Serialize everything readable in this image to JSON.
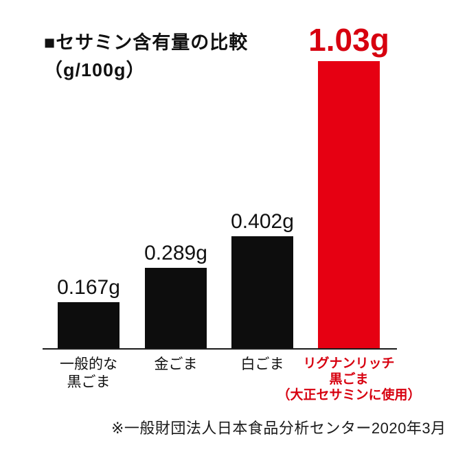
{
  "title": {
    "line1": "■セサミン含有量の比較",
    "line2": "（g/100g）"
  },
  "footnote": "※一般財団法人日本食品分析センター2020年3月",
  "colors": {
    "bar_black": "#0d0d0d",
    "bar_red": "#e60012",
    "text_black": "#111111",
    "text_red": "#d7000f",
    "background": "#ffffff"
  },
  "chart_data": {
    "type": "bar",
    "title": "セサミン含有量の比較（g/100g）",
    "ylabel": "セサミン含有量 (g/100g)",
    "xlabel": "",
    "ylim": [
      0,
      1.03
    ],
    "grid": false,
    "legend": false,
    "categories": [
      "一般的な黒ごま",
      "金ごま",
      "白ごま",
      "リグナンリッチ黒ごま（大正セサミンに使用）"
    ],
    "values": [
      0.167,
      0.289,
      0.402,
      1.03
    ],
    "value_labels": [
      "0.167g",
      "0.289g",
      "0.402g",
      "1.03g"
    ],
    "bars": [
      {
        "category_lines": [
          "一般的な",
          "黒ごま"
        ],
        "value": 0.167,
        "label": "0.167g",
        "color": "#0d0d0d",
        "highlight": false
      },
      {
        "category_lines": [
          "金ごま"
        ],
        "value": 0.289,
        "label": "0.289g",
        "color": "#0d0d0d",
        "highlight": false
      },
      {
        "category_lines": [
          "白ごま"
        ],
        "value": 0.402,
        "label": "0.402g",
        "color": "#0d0d0d",
        "highlight": false
      },
      {
        "category_lines": [
          "リグナンリッチ",
          "黒ごま",
          "（大正セサミンに使用）"
        ],
        "value": 1.03,
        "label": "1.03g",
        "color": "#e60012",
        "highlight": true
      }
    ]
  }
}
